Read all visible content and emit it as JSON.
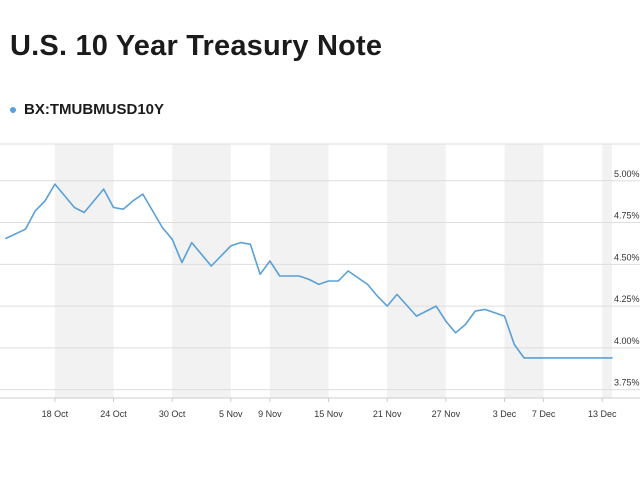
{
  "title": "U.S. 10 Year Treasury Note",
  "chart_data": {
    "type": "line",
    "title": "U.S. 10 Year Treasury Note",
    "series": [
      {
        "name": "BX:TMUBMUSD10Y",
        "color": "#5aa0d8",
        "x": [
          "2023-10-13",
          "2023-10-15",
          "2023-10-16",
          "2023-10-17",
          "2023-10-18",
          "2023-10-19",
          "2023-10-20",
          "2023-10-21",
          "2023-10-23",
          "2023-10-24",
          "2023-10-25",
          "2023-10-26",
          "2023-10-27",
          "2023-10-29",
          "2023-10-30",
          "2023-10-31",
          "2023-11-01",
          "2023-11-02",
          "2023-11-03",
          "2023-11-05",
          "2023-11-06",
          "2023-11-07",
          "2023-11-08",
          "2023-11-09",
          "2023-11-10",
          "2023-11-12",
          "2023-11-13",
          "2023-11-14",
          "2023-11-15",
          "2023-11-16",
          "2023-11-17",
          "2023-11-19",
          "2023-11-20",
          "2023-11-21",
          "2023-11-22",
          "2023-11-24",
          "2023-11-26",
          "2023-11-27",
          "2023-11-28",
          "2023-11-29",
          "2023-11-30",
          "2023-12-01",
          "2023-12-03",
          "2023-12-04",
          "2023-12-05",
          "2023-12-06",
          "2023-12-07",
          "2023-12-08",
          "2023-12-10",
          "2023-12-11",
          "2023-12-12",
          "2023-12-13",
          "2023-12-14"
        ],
        "y": [
          4.655,
          4.71,
          4.82,
          4.88,
          4.98,
          4.91,
          4.84,
          4.81,
          4.95,
          4.84,
          4.83,
          4.88,
          4.92,
          4.72,
          4.65,
          4.51,
          4.63,
          4.56,
          4.49,
          4.61,
          4.63,
          4.62,
          4.44,
          4.52,
          4.43,
          4.43,
          4.41,
          4.38,
          4.4,
          4.4,
          4.46,
          4.38,
          4.31,
          4.25,
          4.32,
          4.19,
          4.25,
          4.16,
          4.09,
          4.14,
          4.22,
          4.23,
          4.19,
          4.02,
          3.94,
          3.94,
          3.94,
          3.94,
          3.94,
          3.94,
          3.94,
          3.94,
          3.94
        ]
      }
    ],
    "y_ticks": [
      "5.00%",
      "4.75%",
      "4.50%",
      "4.25%",
      "4.00%",
      "3.75%"
    ],
    "y_tick_values": [
      5.0,
      4.75,
      4.5,
      4.25,
      4.0,
      3.75
    ],
    "x_ticks": [
      "18 Oct",
      "24 Oct",
      "30 Oct",
      "5 Nov",
      "9 Nov",
      "15 Nov",
      "21 Nov",
      "27 Nov",
      "3 Dec",
      "7 Dec",
      "13 Dec"
    ],
    "x_tick_dates": [
      "2023-10-18",
      "2023-10-24",
      "2023-10-30",
      "2023-11-05",
      "2023-11-09",
      "2023-11-15",
      "2023-11-21",
      "2023-11-27",
      "2023-12-03",
      "2023-12-07",
      "2023-12-13"
    ],
    "ylim": [
      3.7,
      5.22
    ],
    "xlim": [
      "2023-10-13",
      "2023-12-14"
    ],
    "grid": true,
    "y_axis_position": "right",
    "shaded_bands": [
      [
        "2023-10-18",
        "2023-10-24"
      ],
      [
        "2023-10-30",
        "2023-11-05"
      ],
      [
        "2023-11-09",
        "2023-11-15"
      ],
      [
        "2023-11-21",
        "2023-11-27"
      ],
      [
        "2023-12-03",
        "2023-12-07"
      ],
      [
        "2023-12-13",
        "2023-12-14"
      ]
    ],
    "legend_position": "top-left"
  },
  "colors": {
    "line": "#5aa0d8",
    "band": "#f2f2f2",
    "grid": "#dddddd"
  }
}
